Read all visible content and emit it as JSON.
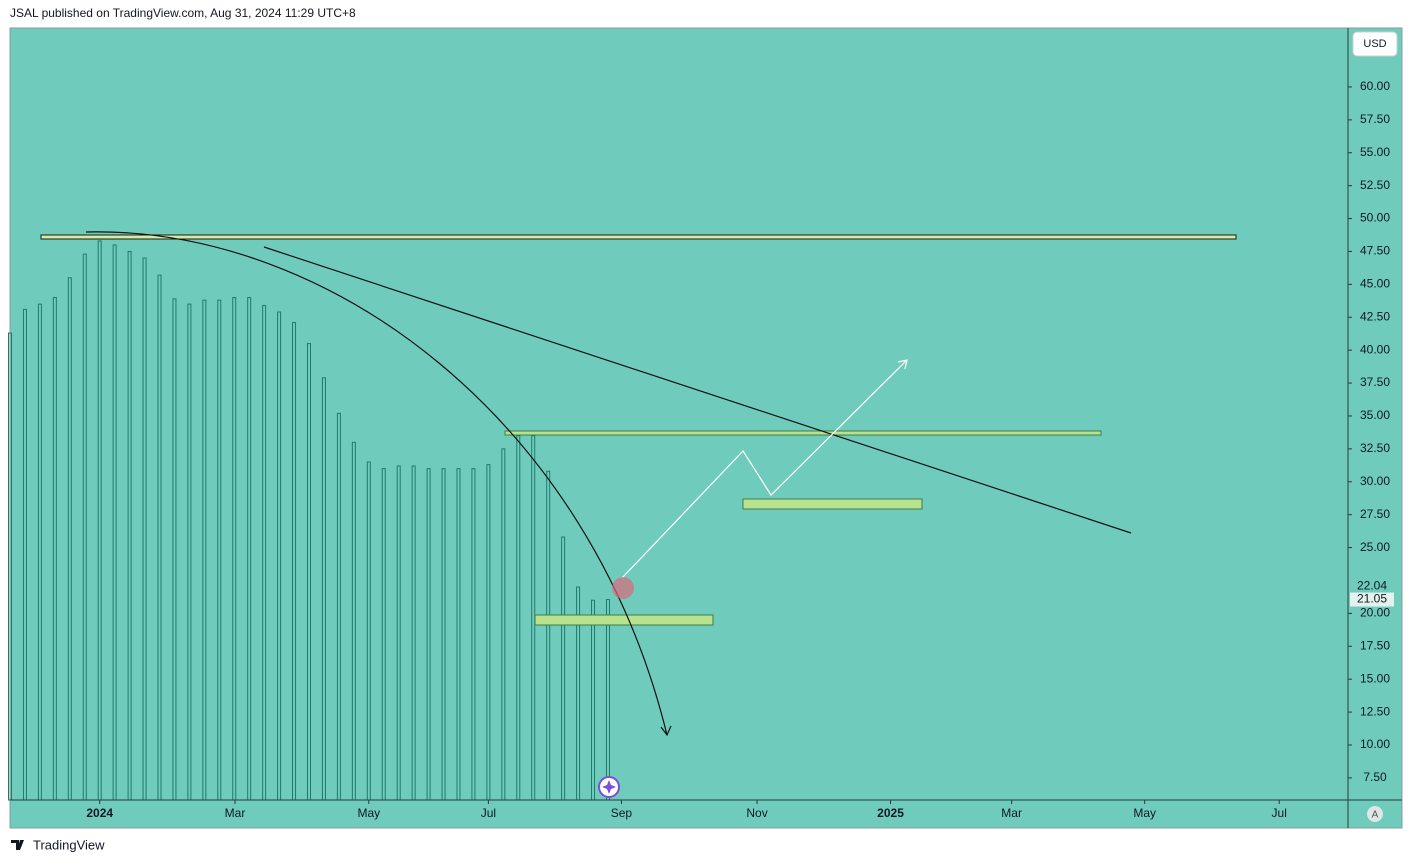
{
  "header": {
    "published": "JSAL published on TradingView.com, Aug 31, 2024 11:29 UTC+8"
  },
  "footer": {
    "brand": "TradingView"
  },
  "chart_data": {
    "type": "bar",
    "currency": "USD",
    "auto_button": "A",
    "series": [
      {
        "color": "#1f7a6b",
        "x": [
          0,
          1,
          2,
          3,
          4,
          5,
          6,
          7,
          8,
          9,
          10,
          11,
          12,
          13,
          14,
          15,
          16,
          17,
          18,
          19,
          20,
          21,
          22,
          23,
          24,
          25,
          26,
          27,
          28,
          29,
          30,
          31,
          32,
          33,
          34,
          35,
          36,
          37,
          38,
          39,
          40
        ],
        "values": [
          41.3,
          43.1,
          43.5,
          44.0,
          45.5,
          47.3,
          48.3,
          48.0,
          47.5,
          47.0,
          45.7,
          43.9,
          43.5,
          43.8,
          43.8,
          44.0,
          44.0,
          43.4,
          42.9,
          42.1,
          40.5,
          37.9,
          35.2,
          33.0,
          31.5,
          31.0,
          31.2,
          31.2,
          31.0,
          31.0,
          31.0,
          31.0,
          31.3,
          32.5,
          33.5,
          33.5,
          30.8,
          25.8,
          22.0,
          21.0,
          21.05
        ]
      }
    ],
    "xlim": [
      0,
      89.5
    ],
    "xticks": [
      {
        "value": 6.0,
        "label": "2024"
      },
      {
        "value": 15.05,
        "label": "Mar"
      },
      {
        "value": 24.0,
        "label": "May"
      },
      {
        "value": 32.0,
        "label": "Jul"
      },
      {
        "value": 40.9,
        "label": "Sep"
      },
      {
        "value": 49.97,
        "label": "Nov"
      },
      {
        "value": 58.9,
        "label": "2025"
      },
      {
        "value": 67.0,
        "label": "Mar"
      },
      {
        "value": 75.9,
        "label": "May"
      },
      {
        "value": 84.9,
        "label": "Jul"
      }
    ],
    "ylim": [
      5.82,
      64.48
    ],
    "yticks": [
      {
        "value": 7.5,
        "label": "7.50"
      },
      {
        "value": 10,
        "label": "10.00"
      },
      {
        "value": 12.5,
        "label": "12.50"
      },
      {
        "value": 15,
        "label": "15.00"
      },
      {
        "value": 17.5,
        "label": "17.50"
      },
      {
        "value": 20,
        "label": "20.00"
      },
      {
        "value": 25,
        "label": "25.00"
      },
      {
        "value": 27.5,
        "label": "27.50"
      },
      {
        "value": 30,
        "label": "30.00"
      },
      {
        "value": 32.5,
        "label": "32.50"
      },
      {
        "value": 35,
        "label": "35.00"
      },
      {
        "value": 37.5,
        "label": "37.50"
      },
      {
        "value": 40,
        "label": "40.00"
      },
      {
        "value": 42.5,
        "label": "42.50"
      },
      {
        "value": 45,
        "label": "45.00"
      },
      {
        "value": 47.5,
        "label": "47.50"
      },
      {
        "value": 50,
        "label": "50.00"
      },
      {
        "value": 52.5,
        "label": "52.50"
      },
      {
        "value": 55,
        "label": "55.00"
      },
      {
        "value": 57.5,
        "label": "57.50"
      },
      {
        "value": 60,
        "label": "60.00"
      }
    ],
    "price_labels": [
      {
        "value": 22.04,
        "label": "22.04"
      },
      {
        "value": 21.05,
        "label": "21.05"
      }
    ],
    "grid": false
  }
}
